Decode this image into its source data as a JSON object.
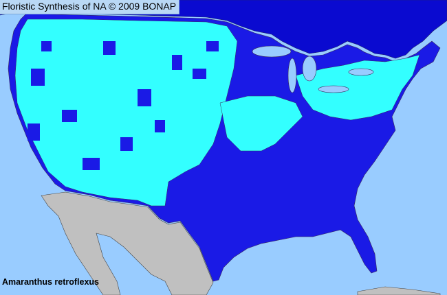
{
  "header": {
    "title": "Floristic Synthesis of NA © 2009 BONAP"
  },
  "map": {
    "species": "Amaranthus retroflexus",
    "colors": {
      "ocean": "#99ccff",
      "canada": "#0a0ad0",
      "present_native": "#1a1ae6",
      "present_county": "#33ffff",
      "mexico": "#c0c0c0",
      "lakes": "#99ccff",
      "borders": "#3a2a5a"
    }
  }
}
